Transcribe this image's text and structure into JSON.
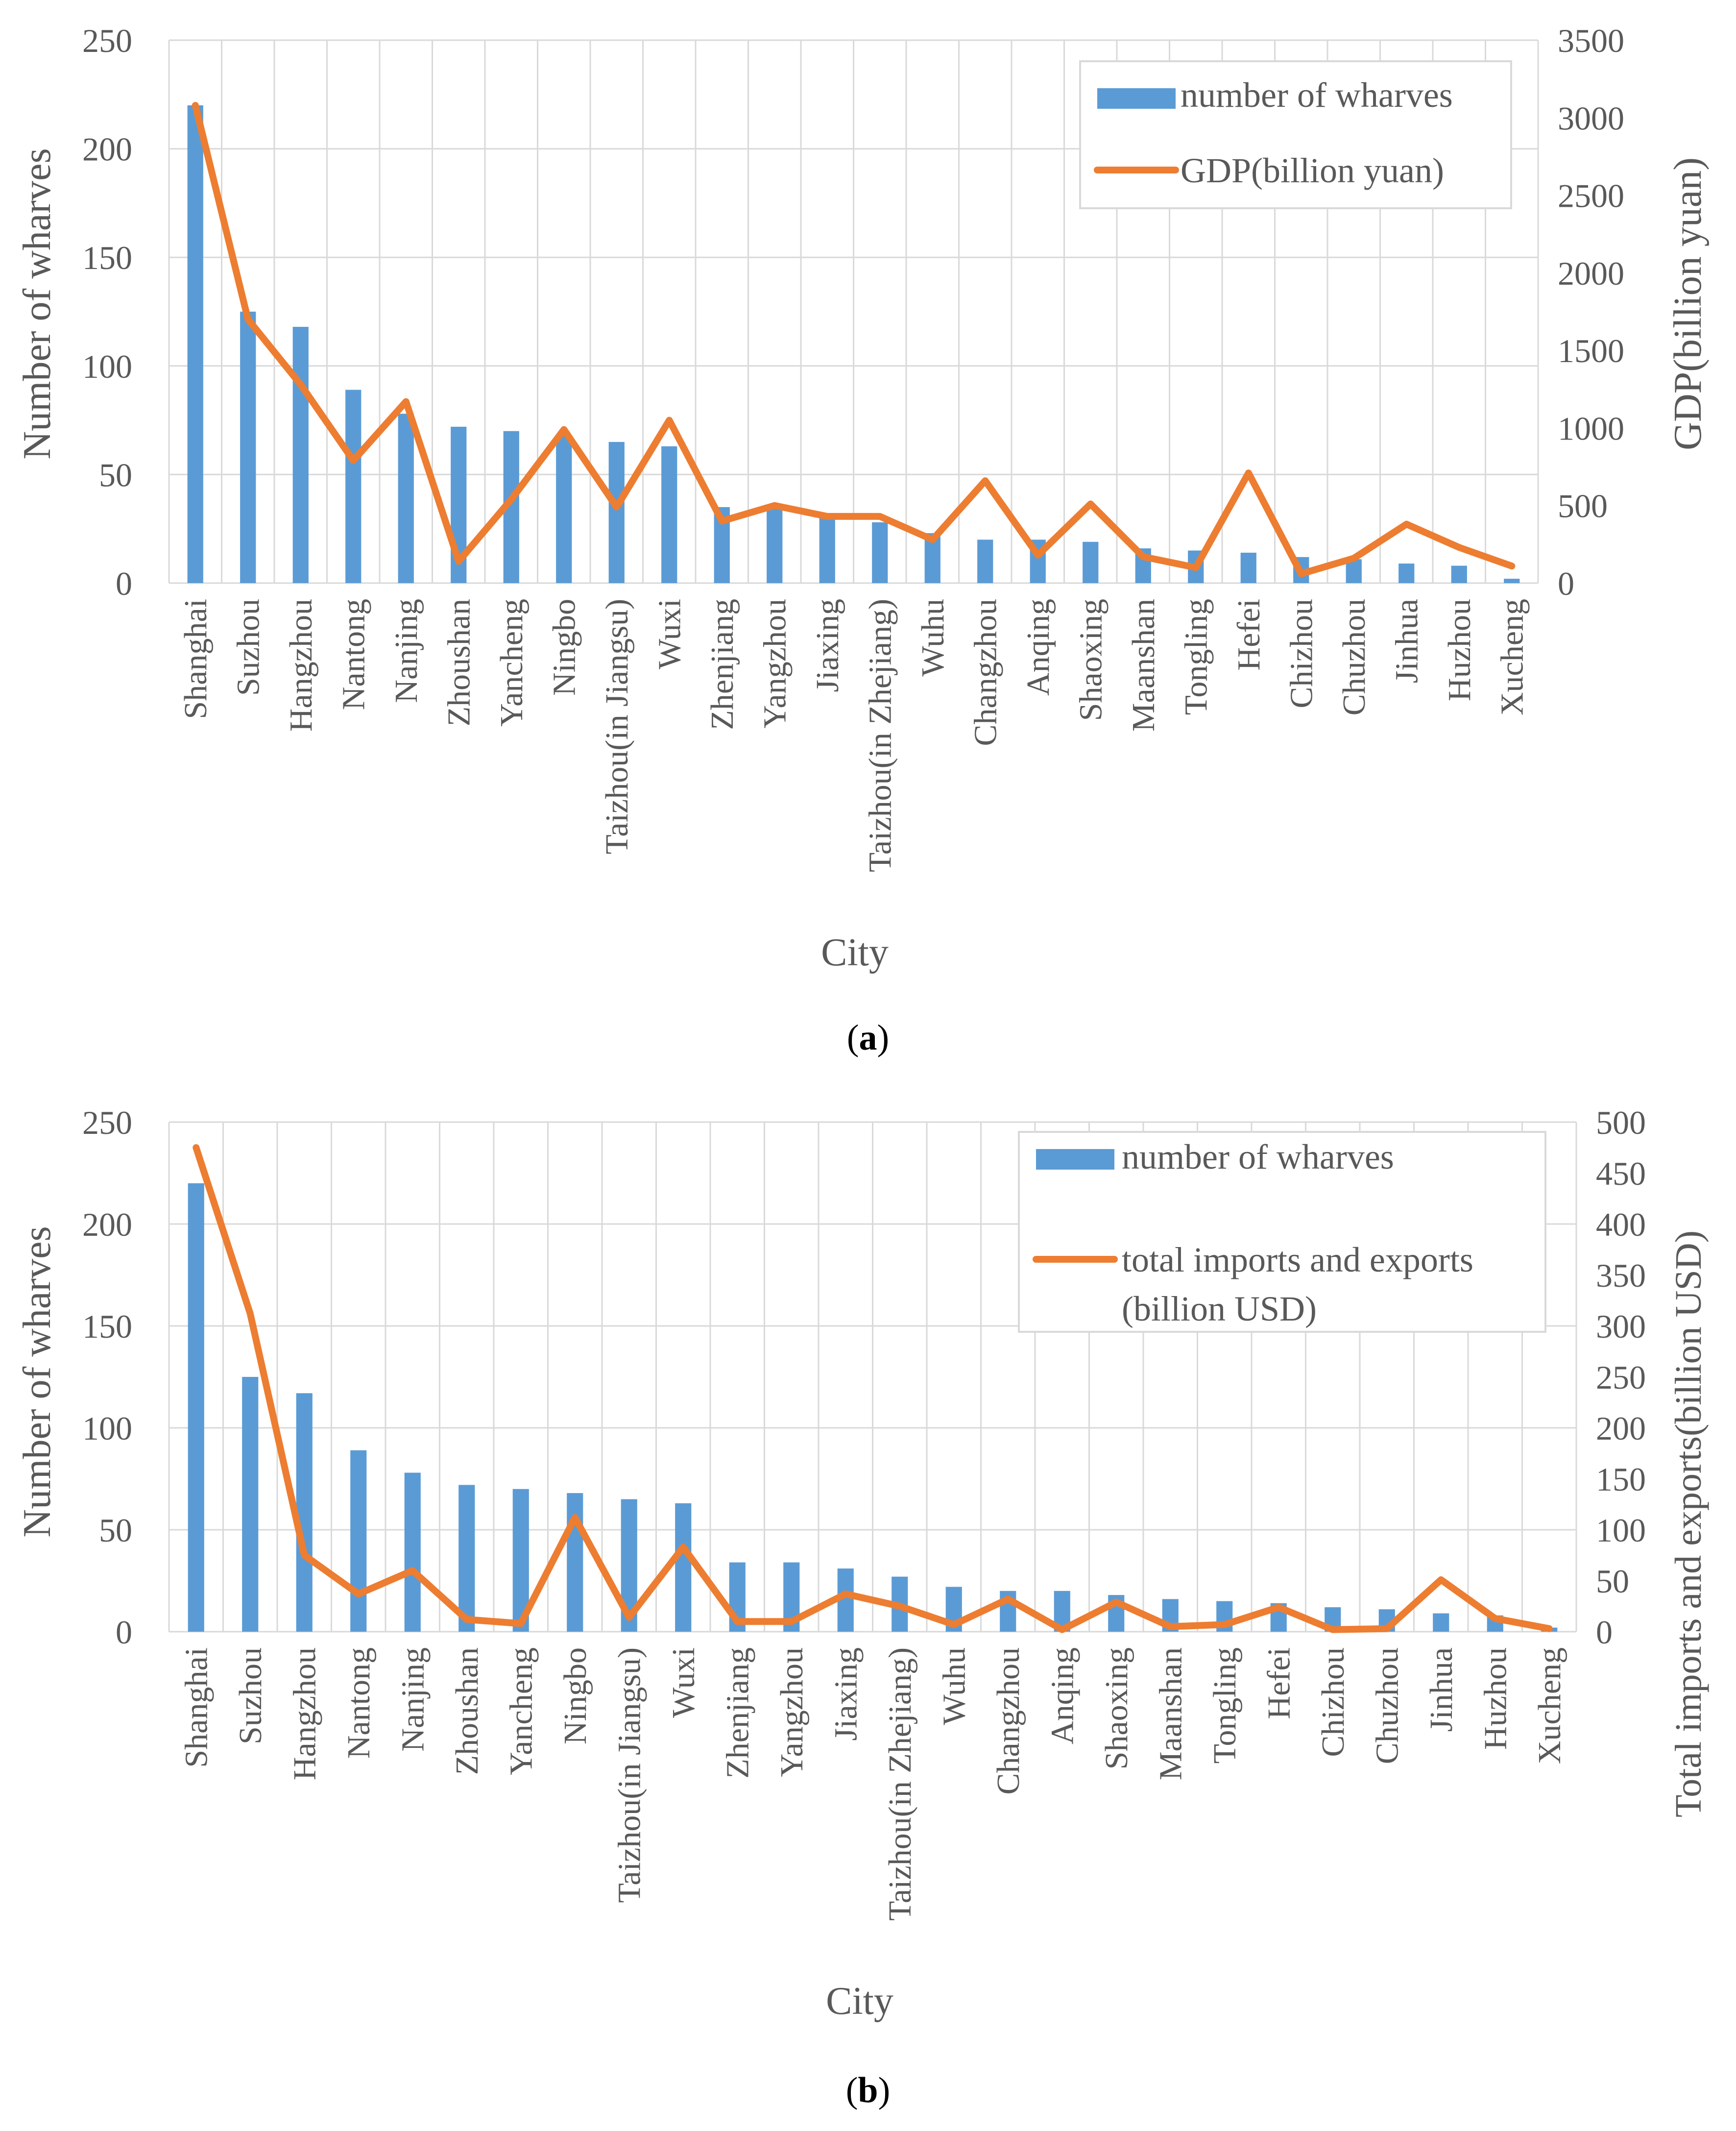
{
  "colors": {
    "bar": "#5B9BD5",
    "line": "#ED7D31",
    "grid": "#D9D9D9",
    "axis_text": "#595959"
  },
  "chart_data": [
    {
      "type": "bar+line",
      "panel_label": "a",
      "xlabel": "City",
      "ylabel": "Number of wharves",
      "y2label": "GDP(billion yuan)",
      "ylim": [
        0,
        250
      ],
      "y2lim": [
        0,
        3500
      ],
      "y_ticks": [
        0,
        50,
        100,
        150,
        200,
        250
      ],
      "y2_ticks": [
        0,
        500,
        1000,
        1500,
        2000,
        2500,
        3000,
        3500
      ],
      "legend": {
        "position": "top-right",
        "bar_label": "number of wharves",
        "line_label": "GDP(billion yuan)"
      },
      "categories": [
        "Shanghai",
        "Suzhou",
        "Hangzhou",
        "Nantong",
        "Nanjing",
        "Zhoushan",
        "Yancheng",
        "Ningbo",
        "Taizhou(in Jiangsu)",
        "Wuxi",
        "Zhenjiang",
        "Yangzhou",
        "Jiaxing",
        "Taizhou(in Zhejiang)",
        "Wuhu",
        "Changzhou",
        "Anqing",
        "Shaoxing",
        "Maanshan",
        "Tongling",
        "Hefei",
        "Chizhou",
        "Chuzhou",
        "Jinhua",
        "Huzhou",
        "Xucheng"
      ],
      "series": [
        {
          "name": "number of wharves",
          "kind": "bar",
          "axis": "left",
          "values": [
            220,
            125,
            118,
            89,
            78,
            72,
            70,
            68,
            65,
            63,
            35,
            35,
            31,
            28,
            23,
            20,
            20,
            19,
            16,
            15,
            14,
            12,
            11,
            9,
            8,
            2
          ]
        },
        {
          "name": "GDP(billion yuan)",
          "kind": "line",
          "axis": "right",
          "values": [
            3080,
            1700,
            1280,
            790,
            1170,
            140,
            540,
            990,
            490,
            1050,
            400,
            500,
            430,
            430,
            280,
            660,
            180,
            510,
            170,
            100,
            710,
            60,
            160,
            380,
            230,
            110
          ]
        }
      ]
    },
    {
      "type": "bar+line",
      "panel_label": "b",
      "xlabel": "City",
      "ylabel": "Number of wharves",
      "y2label": "Total imports and exports(billion USD)",
      "ylim": [
        0,
        250
      ],
      "y2lim": [
        0,
        500
      ],
      "y_ticks": [
        0,
        50,
        100,
        150,
        200,
        250
      ],
      "y2_ticks": [
        0,
        50,
        100,
        150,
        200,
        250,
        300,
        350,
        400,
        450,
        500
      ],
      "legend": {
        "position": "top-right",
        "bar_label": "number of wharves",
        "line_label_line1": "total imports and exports",
        "line_label_line2": "(billion USD)"
      },
      "categories": [
        "Shanghai",
        "Suzhou",
        "Hangzhou",
        "Nantong",
        "Nanjing",
        "Zhoushan",
        "Yancheng",
        "Ningbo",
        "Taizhou(in Jiangsu)",
        "Wuxi",
        "Zhenjiang",
        "Yangzhou",
        "Jiaxing",
        "Taizhou(in Zhejiang)",
        "Wuhu",
        "Changzhou",
        "Anqing",
        "Shaoxing",
        "Maanshan",
        "Tongling",
        "Hefei",
        "Chizhou",
        "Chuzhou",
        "Jinhua",
        "Huzhou",
        "Xucheng"
      ],
      "series": [
        {
          "name": "number of wharves",
          "kind": "bar",
          "axis": "left",
          "values": [
            220,
            125,
            117,
            89,
            78,
            72,
            70,
            68,
            65,
            63,
            34,
            34,
            31,
            27,
            22,
            20,
            20,
            18,
            16,
            15,
            14,
            12,
            11,
            9,
            8,
            2
          ]
        },
        {
          "name": "total imports and exports (billion USD)",
          "kind": "line",
          "axis": "right",
          "values": [
            475,
            312,
            75,
            37,
            60,
            12,
            8,
            112,
            14,
            83,
            10,
            10,
            37,
            25,
            7,
            32,
            2,
            29,
            5,
            7,
            24,
            2,
            3,
            51,
            13,
            3
          ]
        }
      ]
    }
  ]
}
